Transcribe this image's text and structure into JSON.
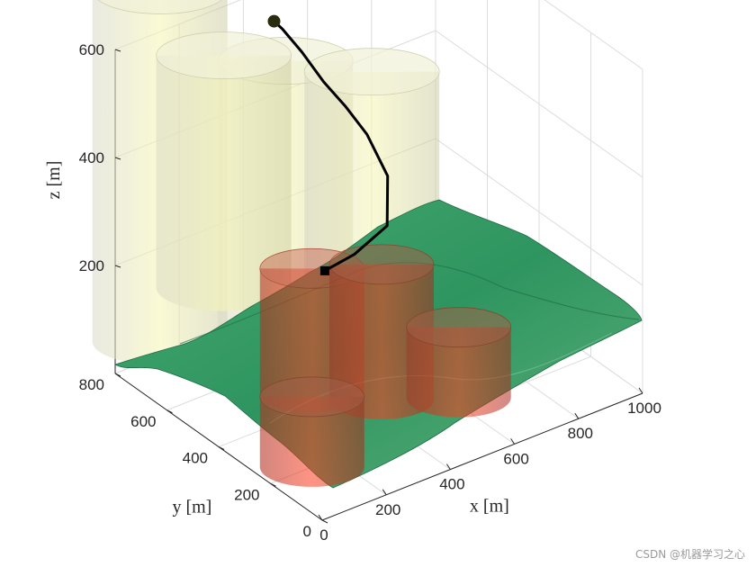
{
  "chart_data": {
    "type": "surface3d",
    "title": "",
    "xlabel": "x [m]",
    "ylabel": "y [m]",
    "zlabel": "z [m]",
    "xlim": [
      0,
      1000
    ],
    "ylim": [
      0,
      800
    ],
    "zlim": [
      0,
      600
    ],
    "x_ticks": [
      "0",
      "200",
      "400",
      "600",
      "800",
      "1000"
    ],
    "y_ticks": [
      "0",
      "200",
      "400",
      "600",
      "800"
    ],
    "z_ticks": [
      "200",
      "400",
      "600"
    ],
    "grid": true,
    "colors": {
      "terrain_low": "#6fbf83",
      "terrain_mid": "#2f9a63",
      "terrain_high": "#1f7a4c",
      "obstacle_safe": "#f4f4b0",
      "obstacle_threat": "#e8402a",
      "path": "#000000"
    },
    "cylinders": [
      {
        "type": "safe",
        "x": 180,
        "y": 850,
        "z0": 0,
        "z1": 650
      },
      {
        "type": "safe",
        "x": 370,
        "y": 600,
        "z0": 0,
        "z1": 560
      },
      {
        "type": "safe",
        "x": 460,
        "y": 950,
        "z0": 0,
        "z1": 430
      },
      {
        "type": "safe",
        "x": 680,
        "y": 650,
        "z0": 0,
        "z1": 450
      },
      {
        "type": "threat",
        "x": 340,
        "y": 460,
        "z0": 0,
        "z1": 230
      },
      {
        "type": "threat",
        "x": 460,
        "y": 340,
        "z0": 0,
        "z1": 250
      },
      {
        "type": "threat",
        "x": 620,
        "y": 240,
        "z0": 0,
        "z1": 130
      },
      {
        "type": "threat",
        "x": 130,
        "y": 200,
        "z0": 0,
        "z1": 130
      }
    ],
    "path": {
      "start": {
        "x": 420,
        "y": 510,
        "z": 190
      },
      "end": {
        "x": 520,
        "y": 830,
        "z": 520
      },
      "points": [
        {
          "x": 420,
          "y": 510,
          "z": 190
        },
        {
          "x": 480,
          "y": 470,
          "z": 220
        },
        {
          "x": 550,
          "y": 430,
          "z": 270
        },
        {
          "x": 600,
          "y": 490,
          "z": 330
        },
        {
          "x": 600,
          "y": 570,
          "z": 380
        },
        {
          "x": 590,
          "y": 640,
          "z": 410
        },
        {
          "x": 570,
          "y": 700,
          "z": 440
        },
        {
          "x": 550,
          "y": 760,
          "z": 480
        },
        {
          "x": 530,
          "y": 810,
          "z": 510
        },
        {
          "x": 520,
          "y": 830,
          "z": 520
        }
      ]
    }
  },
  "watermark": "CSDN @机器学习之心"
}
